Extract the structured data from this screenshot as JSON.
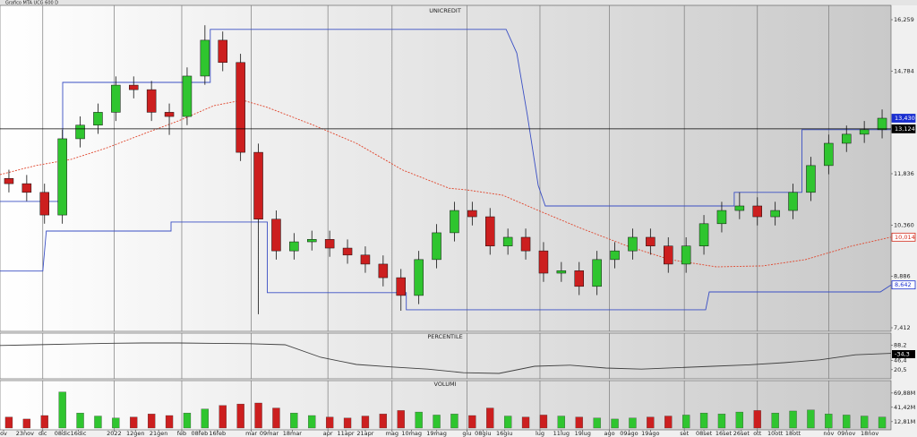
{
  "window_title": "Grafico MTA UCG 600 D",
  "chart_data": [
    {
      "type": "candlestick",
      "title": "UNICREDIT",
      "x": [
        2.5,
        7.5,
        12.5,
        17.5,
        22.5,
        27.5,
        32.5,
        37.5,
        42.5,
        47.5,
        52.5,
        57.5,
        62.5,
        67.5,
        72.5,
        77.5,
        82.5,
        87.5,
        92.5,
        97.5,
        102.5,
        107.5,
        112.5,
        117.5,
        122.5,
        127.5,
        132.5,
        137.5,
        142.5,
        147.5,
        152.5,
        157.5,
        162.5,
        167.5,
        172.5,
        177.5,
        182.5,
        187.5,
        192.5,
        197.5,
        202.5,
        207.5,
        212.5,
        217.5,
        222.5,
        227.5,
        232.5,
        237.5,
        242.5,
        247.5
      ],
      "open": [
        11.7,
        11.55,
        11.3,
        10.65,
        12.84,
        13.23,
        13.6,
        14.38,
        14.25,
        13.6,
        13.48,
        14.64,
        15.67,
        15.03,
        12.45,
        10.53,
        9.62,
        9.88,
        9.95,
        9.7,
        9.5,
        9.24,
        8.85,
        8.34,
        9.37,
        10.14,
        10.78,
        10.6,
        9.76,
        10.01,
        9.62,
        8.98,
        9.05,
        8.6,
        9.37,
        9.62,
        10.01,
        9.76,
        9.24,
        9.76,
        10.4,
        10.78,
        10.91,
        10.6,
        10.78,
        11.3,
        12.07,
        12.71,
        12.97,
        13.1
      ],
      "high": [
        11.95,
        11.8,
        11.55,
        13.1,
        13.48,
        13.85,
        14.63,
        14.63,
        14.5,
        13.85,
        14.89,
        16.1,
        15.92,
        15.28,
        12.7,
        10.78,
        10.13,
        10.2,
        10.2,
        9.95,
        9.75,
        9.49,
        9.1,
        9.62,
        10.39,
        11.03,
        11.03,
        10.85,
        10.26,
        10.26,
        9.87,
        9.3,
        9.3,
        9.62,
        9.87,
        10.26,
        10.26,
        10.01,
        10.01,
        10.65,
        11.03,
        11.3,
        11.16,
        11.03,
        11.55,
        12.32,
        12.96,
        13.22,
        13.35,
        13.68
      ],
      "low": [
        11.3,
        11.05,
        10.4,
        10.4,
        12.59,
        12.98,
        13.35,
        14.0,
        13.35,
        12.95,
        13.23,
        14.39,
        14.78,
        12.2,
        7.8,
        9.37,
        9.37,
        9.63,
        9.45,
        9.25,
        8.99,
        8.6,
        7.9,
        8.09,
        9.12,
        9.89,
        10.35,
        9.51,
        9.51,
        9.37,
        8.73,
        8.73,
        8.35,
        8.35,
        9.12,
        9.37,
        9.51,
        8.99,
        8.99,
        9.51,
        10.15,
        10.53,
        10.35,
        10.35,
        10.53,
        11.05,
        11.82,
        12.46,
        12.72,
        12.85
      ],
      "close": [
        11.55,
        11.3,
        10.65,
        12.84,
        13.23,
        13.6,
        14.38,
        14.25,
        13.6,
        13.48,
        14.64,
        15.67,
        15.03,
        12.45,
        10.53,
        9.62,
        9.88,
        9.95,
        9.7,
        9.5,
        9.24,
        8.85,
        8.34,
        9.37,
        10.14,
        10.78,
        10.6,
        9.76,
        10.01,
        9.62,
        8.98,
        9.05,
        8.6,
        9.37,
        9.62,
        10.01,
        9.76,
        9.24,
        9.76,
        10.4,
        10.78,
        10.91,
        10.6,
        10.78,
        11.3,
        12.07,
        12.71,
        12.97,
        13.1,
        13.43
      ],
      "up_color": "#2fc52f",
      "down_color": "#cc1f1f",
      "overlays": [
        {
          "color": "#e0452c",
          "dashed": true,
          "x": [
            0,
            10,
            20,
            30,
            40,
            50,
            60,
            68,
            75,
            88,
            100,
            113,
            126,
            131,
            141,
            151,
            163,
            176,
            188,
            201,
            214,
            226,
            239,
            250
          ],
          "values": [
            11.81,
            12.07,
            12.25,
            12.58,
            12.97,
            13.35,
            13.79,
            13.95,
            13.74,
            13.23,
            12.71,
            11.94,
            11.42,
            11.37,
            11.22,
            10.78,
            10.27,
            9.76,
            9.37,
            9.16,
            9.19,
            9.37,
            9.76,
            10.014
          ]
        },
        {
          "color": "#3a4fc4",
          "dashed": false,
          "x": [
            0,
            17.6,
            17.6,
            59,
            59,
            142,
            145,
            148,
            151,
            153,
            206,
            206,
            225,
            225,
            250
          ],
          "values": [
            11.04,
            11.04,
            14.46,
            14.46,
            15.98,
            15.98,
            15.3,
            13.5,
            11.5,
            10.91,
            10.91,
            11.3,
            11.3,
            13.1,
            13.1
          ]
        },
        {
          "color": "#3a4fc4",
          "dashed": false,
          "x": [
            0,
            12,
            13,
            48,
            48,
            75,
            75,
            114,
            114,
            198,
            199,
            247,
            250
          ],
          "values": [
            9.04,
            9.04,
            10.19,
            10.19,
            10.45,
            10.45,
            8.42,
            8.42,
            7.93,
            7.93,
            8.44,
            8.44,
            8.642
          ]
        }
      ],
      "xlim": [
        0,
        250
      ],
      "xticks": [
        {
          "value": 1,
          "label": "ov"
        },
        {
          "value": 7,
          "label": "23nov"
        },
        {
          "value": 12,
          "label": "dic"
        },
        {
          "value": 17.5,
          "label": "08dic"
        },
        {
          "value": 22,
          "label": "16dic"
        },
        {
          "value": 32,
          "label": "2022"
        },
        {
          "value": 38,
          "label": "12gen"
        },
        {
          "value": 44.5,
          "label": "21gen"
        },
        {
          "value": 51,
          "label": "feb"
        },
        {
          "value": 56,
          "label": "08feb"
        },
        {
          "value": 61,
          "label": "16feb"
        },
        {
          "value": 70.5,
          "label": "mar"
        },
        {
          "value": 75.5,
          "label": "09mar"
        },
        {
          "value": 82,
          "label": "18mar"
        },
        {
          "value": 92,
          "label": "apr"
        },
        {
          "value": 97,
          "label": "11apr"
        },
        {
          "value": 102.5,
          "label": "21apr"
        },
        {
          "value": 110,
          "label": "mag"
        },
        {
          "value": 115.5,
          "label": "10mag"
        },
        {
          "value": 122.5,
          "label": "19mag"
        },
        {
          "value": 131,
          "label": "giu"
        },
        {
          "value": 135.5,
          "label": "08giu"
        },
        {
          "value": 141.5,
          "label": "16giu"
        },
        {
          "value": 151.5,
          "label": "lug"
        },
        {
          "value": 157.5,
          "label": "11lug"
        },
        {
          "value": 163.5,
          "label": "19lug"
        },
        {
          "value": 171,
          "label": "ago"
        },
        {
          "value": 176.5,
          "label": "09ago"
        },
        {
          "value": 182.5,
          "label": "19ago"
        },
        {
          "value": 192,
          "label": "set"
        },
        {
          "value": 197.5,
          "label": "08set"
        },
        {
          "value": 203,
          "label": "16set"
        },
        {
          "value": 208,
          "label": "26set"
        },
        {
          "value": 212.5,
          "label": "ott"
        },
        {
          "value": 217.5,
          "label": "10ott"
        },
        {
          "value": 222.5,
          "label": "18ott"
        },
        {
          "value": 232.5,
          "label": "nov"
        },
        {
          "value": 237.5,
          "label": "09nov"
        },
        {
          "value": 244,
          "label": "18nov"
        }
      ],
      "ylim": [
        7.412,
        16.259
      ],
      "yticks": [
        {
          "value": 7.412,
          "label": "7,412"
        },
        {
          "value": 8.886,
          "label": "8,886"
        },
        {
          "value": 10.36,
          "label": "10,360"
        },
        {
          "value": 11.836,
          "label": "11,836"
        },
        {
          "value": 14.784,
          "label": "14,784"
        },
        {
          "value": 16.259,
          "label": "16,259"
        }
      ],
      "markers": [
        {
          "value": 13.43,
          "label": "13,430",
          "color": "#1a2fd0",
          "filled": true,
          "line": false
        },
        {
          "value": 13.124,
          "label": "13,124",
          "color": "#000000",
          "filled": true,
          "line": true
        },
        {
          "value": 10.014,
          "label": "10,014",
          "color": "#d42a1a",
          "filled": false,
          "line": false
        },
        {
          "value": 8.642,
          "label": "8,642",
          "color": "#1a2fd0",
          "filled": false,
          "line": false
        }
      ]
    },
    {
      "type": "line",
      "title": "PERCENTILE",
      "color": "#404040",
      "x": [
        0,
        10,
        20,
        30,
        40,
        50,
        60,
        70,
        80,
        90,
        100,
        110,
        120,
        130,
        140,
        150,
        160,
        170,
        180,
        190,
        200,
        210,
        220,
        230,
        240,
        250
      ],
      "values": [
        88,
        90,
        92,
        94,
        95,
        95,
        94,
        93,
        90,
        55,
        35,
        28,
        22,
        12,
        10,
        30,
        33,
        25,
        22,
        26,
        30,
        34,
        40,
        48,
        62,
        66
      ],
      "ylim": [
        0,
        100
      ],
      "yticks": [
        {
          "value": 20.5,
          "label": "20,5"
        },
        {
          "value": 46.4,
          "label": "46,4"
        },
        {
          "value": 88.2,
          "label": "88,2"
        }
      ],
      "annotation": "-34,3"
    },
    {
      "type": "bar",
      "title": "VOLUMI",
      "x": [
        2.5,
        7.5,
        12.5,
        17.5,
        22.5,
        27.5,
        32.5,
        37.5,
        42.5,
        47.5,
        52.5,
        57.5,
        62.5,
        67.5,
        72.5,
        77.5,
        82.5,
        87.5,
        92.5,
        97.5,
        102.5,
        107.5,
        112.5,
        117.5,
        122.5,
        127.5,
        132.5,
        137.5,
        142.5,
        147.5,
        152.5,
        157.5,
        162.5,
        167.5,
        172.5,
        177.5,
        182.5,
        187.5,
        192.5,
        197.5,
        202.5,
        207.5,
        212.5,
        217.5,
        222.5,
        227.5,
        232.5,
        237.5,
        242.5,
        247.5
      ],
      "values": [
        22,
        18,
        25,
        72,
        30,
        24,
        20,
        22,
        28,
        25,
        30,
        38,
        45,
        48,
        50,
        40,
        30,
        25,
        22,
        20,
        24,
        28,
        35,
        32,
        26,
        28,
        25,
        40,
        24,
        22,
        26,
        24,
        22,
        20,
        18,
        20,
        22,
        24,
        26,
        30,
        28,
        32,
        35,
        30,
        34,
        36,
        28,
        26,
        24,
        22
      ],
      "ylim": [
        0,
        75
      ],
      "yticks": [
        {
          "value": 12.81,
          "label": "12,81M"
        },
        {
          "value": 41.42,
          "label": "41,42M"
        },
        {
          "value": 69.88,
          "label": "69,88M"
        }
      ]
    }
  ]
}
